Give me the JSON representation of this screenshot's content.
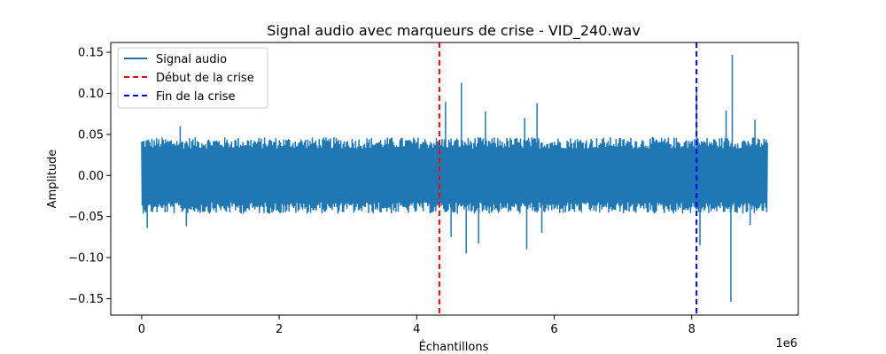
{
  "chart_data": {
    "type": "line",
    "title": "Signal audio avec marqueurs de crise - VID_240.wav",
    "xlabel": "Échantillons",
    "ylabel": "Amplitude",
    "x_offset_label": "1e6",
    "xlim": [
      -0.45,
      9.55
    ],
    "ylim": [
      -0.17,
      0.162
    ],
    "x_ticks": [
      0,
      2,
      4,
      6,
      8
    ],
    "x_tick_labels": [
      "0",
      "2",
      "4",
      "6",
      "8"
    ],
    "y_ticks": [
      0.15,
      0.1,
      0.05,
      0.0,
      -0.05,
      -0.1,
      -0.15
    ],
    "y_tick_labels": [
      "0.15",
      "0.10",
      "0.05",
      "0.00",
      "−0.05",
      "−0.10",
      "−0.15"
    ],
    "x_unit_multiplier": 1000000,
    "legend_position": "top-left",
    "legend": [
      {
        "label": "Signal audio",
        "color": "#1f77b4",
        "style": "solid"
      },
      {
        "label": "Début de la crise",
        "color": "#ff0000",
        "style": "dashed"
      },
      {
        "label": "Fin de la crise",
        "color": "#0000ff",
        "style": "dashed"
      }
    ],
    "series": [
      {
        "name": "Signal audio",
        "color": "#1f77b4",
        "x_range": [
          0,
          9.1
        ],
        "baseline_envelope": {
          "upper": 0.04,
          "lower": -0.04
        },
        "peaks": [
          {
            "x": 0.08,
            "y": -0.064
          },
          {
            "x": 0.56,
            "y": 0.06
          },
          {
            "x": 0.65,
            "y": -0.062
          },
          {
            "x": 4.42,
            "y": 0.09
          },
          {
            "x": 4.5,
            "y": -0.075
          },
          {
            "x": 4.65,
            "y": 0.113
          },
          {
            "x": 4.72,
            "y": -0.095
          },
          {
            "x": 4.9,
            "y": -0.083
          },
          {
            "x": 5.0,
            "y": 0.078
          },
          {
            "x": 5.57,
            "y": 0.07
          },
          {
            "x": 5.6,
            "y": -0.09
          },
          {
            "x": 5.75,
            "y": 0.088
          },
          {
            "x": 5.82,
            "y": -0.07
          },
          {
            "x": 8.07,
            "y": 0.104
          },
          {
            "x": 8.12,
            "y": -0.085
          },
          {
            "x": 8.5,
            "y": 0.079
          },
          {
            "x": 8.57,
            "y": -0.154
          },
          {
            "x": 8.59,
            "y": 0.147
          },
          {
            "x": 8.85,
            "y": -0.06
          },
          {
            "x": 8.92,
            "y": 0.068
          }
        ]
      },
      {
        "name": "Début de la crise",
        "type": "vline",
        "x": 4.33,
        "color": "#ff0000",
        "style": "dashed"
      },
      {
        "name": "Fin de la crise",
        "type": "vline",
        "x": 8.07,
        "color": "#0000ff",
        "style": "dashed"
      }
    ]
  }
}
